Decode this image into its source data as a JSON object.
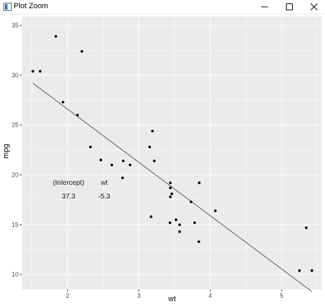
{
  "window": {
    "title": "Plot Zoom",
    "controls": {
      "minimize": "minimize-icon",
      "maximize": "maximize-icon",
      "close": "close-icon"
    }
  },
  "colors": {
    "panel_background": "#ebebeb",
    "grid": "#ffffff",
    "points": "#000000",
    "line": "#333333",
    "axis_text": "#4d4d4d"
  },
  "annotation": {
    "headers": [
      "(Intercept)",
      "wt"
    ],
    "values": [
      "37.3",
      "-5.3"
    ]
  },
  "chart_data": {
    "type": "scatter",
    "xlabel": "wt",
    "ylabel": "mpg",
    "xlim": [
      1.36,
      5.56
    ],
    "ylim": [
      8.5,
      35.9
    ],
    "x_ticks": [
      2,
      3,
      4,
      5
    ],
    "y_ticks": [
      10,
      15,
      20,
      25,
      30,
      35
    ],
    "grid": true,
    "points": [
      {
        "x": 2.62,
        "y": 21.0
      },
      {
        "x": 2.875,
        "y": 21.0
      },
      {
        "x": 2.32,
        "y": 22.8
      },
      {
        "x": 3.215,
        "y": 21.4
      },
      {
        "x": 3.44,
        "y": 18.7
      },
      {
        "x": 3.46,
        "y": 18.1
      },
      {
        "x": 3.57,
        "y": 14.3
      },
      {
        "x": 3.19,
        "y": 24.4
      },
      {
        "x": 3.15,
        "y": 22.8
      },
      {
        "x": 3.44,
        "y": 19.2
      },
      {
        "x": 3.44,
        "y": 17.8
      },
      {
        "x": 4.07,
        "y": 16.4
      },
      {
        "x": 3.73,
        "y": 17.3
      },
      {
        "x": 3.78,
        "y": 15.2
      },
      {
        "x": 5.25,
        "y": 10.4
      },
      {
        "x": 5.424,
        "y": 10.4
      },
      {
        "x": 5.345,
        "y": 14.7
      },
      {
        "x": 2.2,
        "y": 32.4
      },
      {
        "x": 1.615,
        "y": 30.4
      },
      {
        "x": 1.835,
        "y": 33.9
      },
      {
        "x": 2.465,
        "y": 21.5
      },
      {
        "x": 3.52,
        "y": 15.5
      },
      {
        "x": 3.435,
        "y": 15.2
      },
      {
        "x": 3.84,
        "y": 13.3
      },
      {
        "x": 3.845,
        "y": 19.2
      },
      {
        "x": 1.935,
        "y": 27.3
      },
      {
        "x": 2.14,
        "y": 26.0
      },
      {
        "x": 1.513,
        "y": 30.4
      },
      {
        "x": 3.17,
        "y": 15.8
      },
      {
        "x": 2.77,
        "y": 19.7
      },
      {
        "x": 3.57,
        "y": 15.0
      },
      {
        "x": 2.78,
        "y": 21.4
      }
    ],
    "fit_line": {
      "intercept": 37.285,
      "slope": -5.344,
      "x_range": [
        1.513,
        5.424
      ]
    }
  }
}
